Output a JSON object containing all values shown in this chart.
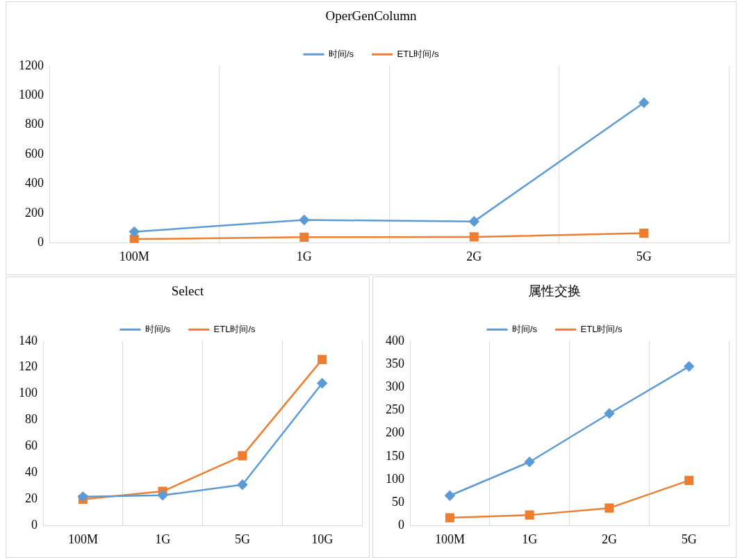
{
  "chart_data": [
    {
      "type": "line",
      "title": "OperGenColumn",
      "categories": [
        "100M",
        "1G",
        "2G",
        "5G"
      ],
      "ylim": [
        0,
        1200
      ],
      "yticks": [
        0,
        200,
        400,
        600,
        800,
        1000,
        1200
      ],
      "grid": "x",
      "legend": "top",
      "series": [
        {
          "name": "时间/s",
          "color": "#5b9bd5",
          "marker": "diamond",
          "values": [
            75,
            155,
            145,
            950
          ]
        },
        {
          "name": "ETL时间/s",
          "color": "#ed7d31",
          "marker": "square",
          "values": [
            25,
            38,
            40,
            65
          ]
        }
      ]
    },
    {
      "type": "line",
      "title": "Select",
      "categories": [
        "100M",
        "1G",
        "5G",
        "10G"
      ],
      "ylim": [
        0,
        140
      ],
      "yticks": [
        0,
        20,
        40,
        60,
        80,
        100,
        120,
        140
      ],
      "grid": "x",
      "legend": "top",
      "series": [
        {
          "name": "时间/s",
          "color": "#5b9bd5",
          "marker": "diamond",
          "values": [
            22,
            23,
            31,
            108
          ]
        },
        {
          "name": "ETL时间/s",
          "color": "#ed7d31",
          "marker": "square",
          "values": [
            20,
            26,
            53,
            126
          ]
        }
      ]
    },
    {
      "type": "line",
      "title": "属性交换",
      "categories": [
        "100M",
        "1G",
        "2G",
        "5G"
      ],
      "ylim": [
        0,
        400
      ],
      "yticks": [
        0,
        50,
        100,
        150,
        200,
        250,
        300,
        350,
        400
      ],
      "grid": "x",
      "legend": "top",
      "series": [
        {
          "name": "时间/s",
          "color": "#5b9bd5",
          "marker": "diamond",
          "values": [
            65,
            138,
            243,
            345
          ]
        },
        {
          "name": "ETL时间/s",
          "color": "#ed7d31",
          "marker": "square",
          "values": [
            17,
            23,
            38,
            98
          ]
        }
      ]
    }
  ]
}
